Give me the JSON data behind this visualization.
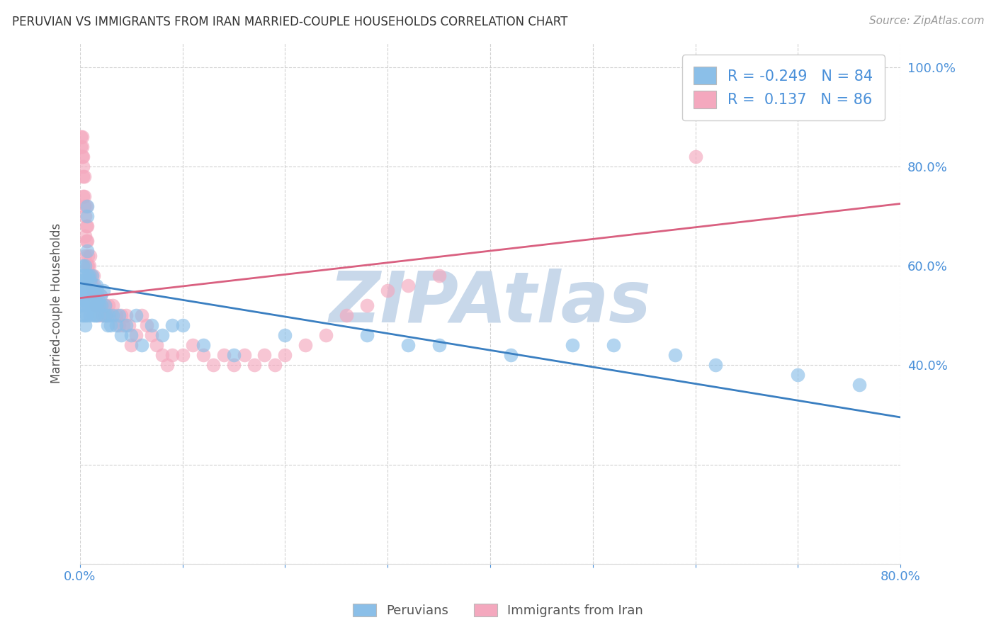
{
  "title": "PERUVIAN VS IMMIGRANTS FROM IRAN MARRIED-COUPLE HOUSEHOLDS CORRELATION CHART",
  "source": "Source: ZipAtlas.com",
  "ylabel": "Married-couple Households",
  "xlabel": "",
  "xlim": [
    0.0,
    0.8
  ],
  "ylim": [
    0.0,
    1.05
  ],
  "yticks": [
    0.0,
    0.2,
    0.4,
    0.6,
    0.8,
    1.0
  ],
  "ytick_labels_right": [
    "",
    "40.0%",
    "60.0%",
    "80.0%",
    "100.0%"
  ],
  "xticks": [
    0.0,
    0.1,
    0.2,
    0.3,
    0.4,
    0.5,
    0.6,
    0.7,
    0.8
  ],
  "xtick_labels": [
    "0.0%",
    "",
    "",
    "",
    "",
    "",
    "",
    "",
    "80.0%"
  ],
  "blue_R": -0.249,
  "blue_N": 84,
  "pink_R": 0.137,
  "pink_N": 86,
  "blue_color": "#8bbfe8",
  "pink_color": "#f4a8be",
  "blue_line_color": "#3a7fc1",
  "pink_line_color": "#d96080",
  "watermark": "ZIPAtlas",
  "watermark_color": "#c8d8ea",
  "legend_label_blue": "Peruvians",
  "legend_label_pink": "Immigrants from Iran",
  "blue_line_y_start": 0.565,
  "blue_line_y_end": 0.295,
  "pink_line_y_start": 0.535,
  "pink_line_y_end": 0.725,
  "blue_scatter_x": [
    0.001,
    0.001,
    0.001,
    0.002,
    0.002,
    0.002,
    0.002,
    0.003,
    0.003,
    0.003,
    0.004,
    0.004,
    0.004,
    0.004,
    0.005,
    0.005,
    0.005,
    0.005,
    0.005,
    0.006,
    0.006,
    0.006,
    0.006,
    0.007,
    0.007,
    0.007,
    0.008,
    0.008,
    0.008,
    0.009,
    0.009,
    0.01,
    0.01,
    0.01,
    0.011,
    0.011,
    0.012,
    0.012,
    0.013,
    0.013,
    0.014,
    0.014,
    0.015,
    0.015,
    0.016,
    0.016,
    0.017,
    0.017,
    0.018,
    0.019,
    0.02,
    0.021,
    0.022,
    0.023,
    0.024,
    0.025,
    0.027,
    0.028,
    0.03,
    0.032,
    0.035,
    0.038,
    0.04,
    0.045,
    0.05,
    0.055,
    0.06,
    0.07,
    0.08,
    0.09,
    0.1,
    0.12,
    0.15,
    0.2,
    0.28,
    0.32,
    0.35,
    0.42,
    0.48,
    0.52,
    0.58,
    0.62,
    0.7,
    0.76
  ],
  "blue_scatter_y": [
    0.54,
    0.52,
    0.56,
    0.55,
    0.5,
    0.58,
    0.57,
    0.54,
    0.6,
    0.52,
    0.57,
    0.53,
    0.5,
    0.56,
    0.58,
    0.54,
    0.52,
    0.48,
    0.6,
    0.55,
    0.57,
    0.53,
    0.5,
    0.63,
    0.7,
    0.72,
    0.58,
    0.55,
    0.52,
    0.54,
    0.58,
    0.57,
    0.54,
    0.5,
    0.55,
    0.52,
    0.58,
    0.54,
    0.52,
    0.5,
    0.55,
    0.52,
    0.54,
    0.5,
    0.56,
    0.52,
    0.55,
    0.5,
    0.53,
    0.52,
    0.54,
    0.52,
    0.5,
    0.55,
    0.52,
    0.5,
    0.48,
    0.5,
    0.48,
    0.5,
    0.48,
    0.5,
    0.46,
    0.48,
    0.46,
    0.5,
    0.44,
    0.48,
    0.46,
    0.48,
    0.48,
    0.44,
    0.42,
    0.46,
    0.46,
    0.44,
    0.44,
    0.42,
    0.44,
    0.44,
    0.42,
    0.4,
    0.38,
    0.36
  ],
  "pink_scatter_x": [
    0.001,
    0.001,
    0.002,
    0.002,
    0.002,
    0.003,
    0.003,
    0.003,
    0.003,
    0.004,
    0.004,
    0.004,
    0.005,
    0.005,
    0.005,
    0.006,
    0.006,
    0.006,
    0.007,
    0.007,
    0.007,
    0.008,
    0.008,
    0.008,
    0.009,
    0.009,
    0.01,
    0.01,
    0.011,
    0.011,
    0.012,
    0.012,
    0.013,
    0.013,
    0.014,
    0.015,
    0.015,
    0.016,
    0.016,
    0.017,
    0.018,
    0.019,
    0.02,
    0.021,
    0.022,
    0.023,
    0.024,
    0.025,
    0.026,
    0.028,
    0.03,
    0.032,
    0.035,
    0.038,
    0.04,
    0.042,
    0.045,
    0.048,
    0.05,
    0.055,
    0.06,
    0.065,
    0.07,
    0.075,
    0.08,
    0.085,
    0.09,
    0.1,
    0.11,
    0.12,
    0.13,
    0.14,
    0.15,
    0.16,
    0.17,
    0.18,
    0.19,
    0.2,
    0.22,
    0.24,
    0.26,
    0.28,
    0.3,
    0.32,
    0.35,
    0.6
  ],
  "pink_scatter_y": [
    0.86,
    0.84,
    0.86,
    0.84,
    0.82,
    0.82,
    0.8,
    0.78,
    0.74,
    0.78,
    0.74,
    0.72,
    0.7,
    0.66,
    0.62,
    0.72,
    0.68,
    0.65,
    0.68,
    0.65,
    0.6,
    0.62,
    0.6,
    0.58,
    0.6,
    0.58,
    0.62,
    0.58,
    0.56,
    0.58,
    0.56,
    0.54,
    0.58,
    0.55,
    0.56,
    0.54,
    0.52,
    0.54,
    0.52,
    0.54,
    0.52,
    0.5,
    0.54,
    0.52,
    0.5,
    0.52,
    0.5,
    0.52,
    0.5,
    0.52,
    0.5,
    0.52,
    0.5,
    0.48,
    0.5,
    0.48,
    0.5,
    0.48,
    0.44,
    0.46,
    0.5,
    0.48,
    0.46,
    0.44,
    0.42,
    0.4,
    0.42,
    0.42,
    0.44,
    0.42,
    0.4,
    0.42,
    0.4,
    0.42,
    0.4,
    0.42,
    0.4,
    0.42,
    0.44,
    0.46,
    0.5,
    0.52,
    0.55,
    0.56,
    0.58,
    0.82
  ]
}
